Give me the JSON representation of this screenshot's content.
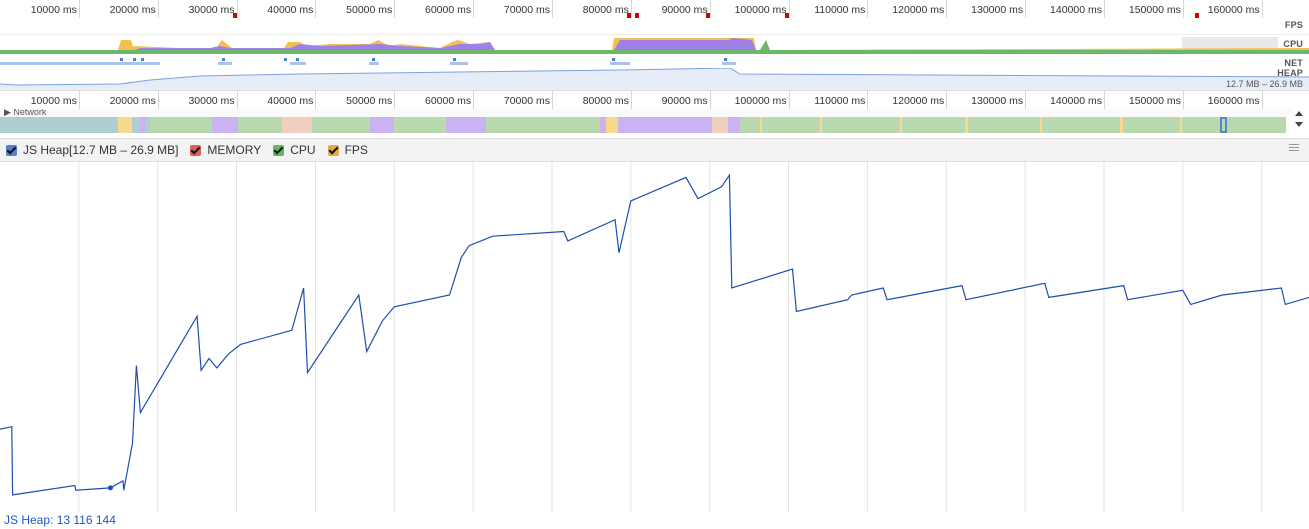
{
  "ruler": {
    "ticks": [
      "10000 ms",
      "20000 ms",
      "30000 ms",
      "40000 ms",
      "50000 ms",
      "60000 ms",
      "70000 ms",
      "80000 ms",
      "90000 ms",
      "100000 ms",
      "110000 ms",
      "120000 ms",
      "130000 ms",
      "140000 ms",
      "150000 ms",
      "160000 ms"
    ]
  },
  "overview_tracks": {
    "fps_label": "FPS",
    "cpu_label": "CPU",
    "net_label": "NET",
    "heap_label": "HEAP",
    "heap_range": "12.7 MB – 26.9 MB"
  },
  "network_row": {
    "label": "▶ Network"
  },
  "legend": {
    "js_heap": "JS Heap[12.7 MB – 26.9 MB]",
    "memory": "MEMORY",
    "cpu": "CPU",
    "fps": "FPS"
  },
  "colors": {
    "js_heap": "#5580d0",
    "memory": "#d96060",
    "cpu": "#5fba5f",
    "fps": "#e2aa4c",
    "heap_line": "#1c4fae",
    "purple": "#9e80e6",
    "cpu_green": "#6bb86b",
    "fps_yellow": "#f4c04f"
  },
  "icons": {
    "menu": "hamburger-icon",
    "scroll_up": "arrow-up-icon",
    "scroll_down": "arrow-down-icon"
  },
  "status": {
    "text": "JS Heap: 13 116 144"
  },
  "chart_data": {
    "type": "line",
    "x_unit": "ms",
    "y_unit": "bytes",
    "xlim": [
      0,
      166000
    ],
    "ylim": [
      12700000,
      26900000
    ],
    "series": [
      {
        "values_xy": [
          [
            0,
            15800000
          ],
          [
            1500,
            15900000
          ],
          [
            1600,
            13000000
          ],
          [
            9500,
            13400000
          ],
          [
            9600,
            13200000
          ],
          [
            14000,
            13300000
          ],
          [
            15600,
            13600000
          ],
          [
            15700,
            13200000
          ],
          [
            16800,
            15200000
          ],
          [
            17300,
            18500000
          ],
          [
            17800,
            16500000
          ],
          [
            25000,
            20600000
          ],
          [
            25500,
            18300000
          ],
          [
            26500,
            18800000
          ],
          [
            27500,
            18400000
          ],
          [
            29000,
            19000000
          ],
          [
            30500,
            19400000
          ],
          [
            37000,
            20000000
          ],
          [
            38500,
            21800000
          ],
          [
            39000,
            18200000
          ],
          [
            45500,
            21500000
          ],
          [
            46500,
            19100000
          ],
          [
            48500,
            20400000
          ],
          [
            50000,
            21000000
          ],
          [
            57000,
            21500000
          ],
          [
            58500,
            23100000
          ],
          [
            59500,
            23600000
          ],
          [
            62500,
            24000000
          ],
          [
            71500,
            24200000
          ],
          [
            72000,
            23800000
          ],
          [
            78000,
            24700000
          ],
          [
            78500,
            23300000
          ],
          [
            80000,
            25500000
          ],
          [
            87000,
            26500000
          ],
          [
            88500,
            25600000
          ],
          [
            91500,
            26100000
          ],
          [
            92500,
            26600000
          ],
          [
            92800,
            21800000
          ],
          [
            100500,
            22600000
          ],
          [
            101000,
            20800000
          ],
          [
            107500,
            21300000
          ],
          [
            108000,
            21500000
          ],
          [
            112000,
            21800000
          ],
          [
            112500,
            21300000
          ],
          [
            122000,
            21900000
          ],
          [
            122500,
            21300000
          ],
          [
            132500,
            22000000
          ],
          [
            133000,
            21400000
          ],
          [
            142500,
            21900000
          ],
          [
            143000,
            21300000
          ],
          [
            150000,
            21700000
          ],
          [
            151000,
            21100000
          ],
          [
            155000,
            21500000
          ],
          [
            162500,
            21800000
          ],
          [
            163000,
            21100000
          ],
          [
            166000,
            21400000
          ]
        ]
      }
    ],
    "grid": true
  }
}
